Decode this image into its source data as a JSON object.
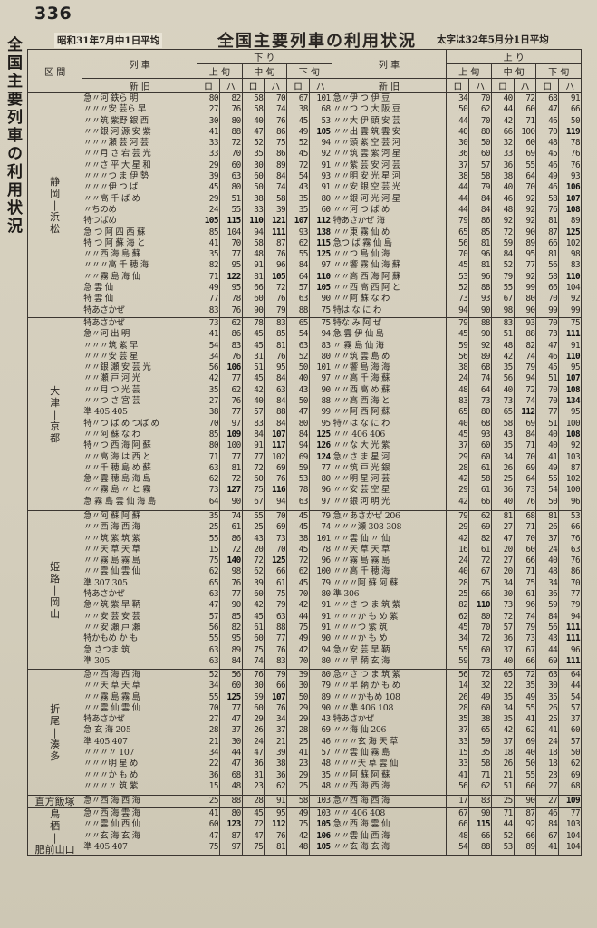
{
  "page": {
    "number": "336",
    "side_title": "全国主要列車の利用状況",
    "note_left": "昭和31年7月中1日平均",
    "title": "全国主要列車の利用状況",
    "note_right": "太字は32年5月分1日平均"
  },
  "header": {
    "section_label": "区 間",
    "section_sub": "区 間",
    "train_label": "列 車",
    "down_label": "下 り",
    "up_label": "上 り",
    "period": [
      "上 旬",
      "中 旬",
      "下 旬"
    ],
    "cls": [
      "ロ",
      "ハ",
      "ロ",
      "ハ",
      "ロ",
      "ハ"
    ],
    "new_old_label": "新 旧"
  },
  "blocks": [
    {
      "section": [
        "静",
        "岡",
        "|",
        "浜",
        "松"
      ],
      "down_trains": "急〃河 鉄ら 明\n〃〃〃安 芸ら 早\n〃〃筑 紫野 銀 西\n〃〃銀 河 源 安 紫\n〃〃〃瀬 芸 河 芸\n〃〃月 さ 宕 芸 光\n〃〃さ 平 大 星 和\n〃〃〃つ ま 伊 勢\n〃〃〃伊 つ ば\n〃〃高 千 ば め\n〃ちのめ\n特つばめ\n急 つ 阿 四 西 蘇\n特 つ 阿 蘇 海 と\n〃〃西 海 島 蘇\n〃〃〃高 千 穂 海\n〃〃霧 島 海 仙\n急 雲 仙\n特 雲 仙\n特あさかぜ",
      "down_nums": [
        [
          "80",
          "82",
          "58",
          "70",
          "67",
          "101"
        ],
        [
          "27",
          "76",
          "58",
          "74",
          "38",
          "68"
        ],
        [
          "30",
          "80",
          "40",
          "76",
          "45",
          "53"
        ],
        [
          "41",
          "88",
          "47",
          "86",
          "49",
          "105"
        ],
        [
          "33",
          "72",
          "52",
          "75",
          "52",
          "94"
        ],
        [
          "33",
          "70",
          "35",
          "86",
          "45",
          "92"
        ],
        [
          "29",
          "60",
          "30",
          "89",
          "72",
          "91"
        ],
        [
          "39",
          "63",
          "60",
          "84",
          "54",
          "93"
        ],
        [
          "45",
          "80",
          "50",
          "74",
          "43",
          "91"
        ],
        [
          "29",
          "51",
          "38",
          "58",
          "35",
          "80"
        ],
        [
          "24",
          "55",
          "33",
          "39",
          "35",
          "60"
        ],
        [
          "105",
          "115",
          "110",
          "121",
          "107",
          "112"
        ],
        [
          "85",
          "104",
          "94",
          "111",
          "93",
          "138"
        ],
        [
          "41",
          "70",
          "58",
          "87",
          "62",
          "115"
        ],
        [
          "35",
          "77",
          "48",
          "76",
          "55",
          "125"
        ],
        [
          "82",
          "95",
          "91",
          "96",
          "84",
          "97"
        ],
        [
          "71",
          "122",
          "81",
          "105",
          "64",
          "110"
        ],
        [
          "49",
          "95",
          "66",
          "72",
          "57",
          "105"
        ],
        [
          "77",
          "78",
          "60",
          "76",
          "63",
          "90"
        ],
        [
          "83",
          "76",
          "90",
          "79",
          "88",
          "75"
        ]
      ],
      "up_trains": "急〃伊 つ 伊 豆\n〃〃つ つ 大 阪 豆\n〃〃大 伊 頭 安 芸\n〃〃出 雲 筑 雲 安\n〃〃頭 紫 空 芸 河\n〃〃筑 雲 紫 河 星\n〃〃紫 芸 安 河 芸\n〃〃明 安 光 星 河\n〃〃安 銀 空 芸 光\n〃〃銀 河 光 河 星\n〃〃河 つ ば め\n特あさかぜ 海\n〃〃東 霧 仙 め\n急つ ば 霧 仙 島\n〃〃つ 島 仙 海\n〃〃響 霧 仙 海 蘇\n〃〃高 西 海 阿 蘇\n〃〃西 高 西 阿 と\n〃〃阿 蘇 な わ\n特は な に わ",
      "up_nums": [
        [
          "34",
          "70",
          "40",
          "72",
          "68",
          "91"
        ],
        [
          "50",
          "62",
          "44",
          "60",
          "47",
          "66"
        ],
        [
          "44",
          "70",
          "42",
          "71",
          "46",
          "50"
        ],
        [
          "40",
          "80",
          "66",
          "100",
          "70",
          "119"
        ],
        [
          "30",
          "50",
          "32",
          "60",
          "48",
          "78"
        ],
        [
          "36",
          "60",
          "33",
          "69",
          "45",
          "76"
        ],
        [
          "37",
          "57",
          "36",
          "55",
          "46",
          "76"
        ],
        [
          "38",
          "58",
          "38",
          "64",
          "49",
          "93"
        ],
        [
          "44",
          "79",
          "40",
          "70",
          "46",
          "106"
        ],
        [
          "44",
          "84",
          "46",
          "92",
          "58",
          "107"
        ],
        [
          "44",
          "84",
          "48",
          "92",
          "76",
          "108"
        ],
        [
          "79",
          "86",
          "92",
          "92",
          "81",
          "89"
        ],
        [
          "65",
          "85",
          "72",
          "90",
          "87",
          "125"
        ],
        [
          "56",
          "81",
          "59",
          "89",
          "66",
          "102"
        ],
        [
          "70",
          "96",
          "84",
          "95",
          "81",
          "98"
        ],
        [
          "45",
          "81",
          "52",
          "77",
          "56",
          "83"
        ],
        [
          "53",
          "96",
          "79",
          "92",
          "58",
          "110"
        ],
        [
          "52",
          "88",
          "55",
          "99",
          "66",
          "104"
        ],
        [
          "73",
          "93",
          "67",
          "80",
          "70",
          "92"
        ],
        [
          "94",
          "90",
          "98",
          "90",
          "99",
          "99"
        ]
      ]
    },
    {
      "section": [
        "大",
        "津",
        "|",
        "京",
        "都"
      ],
      "down_trains": "特あさかぜ\n急〃河 出 明\n〃〃〃筑 紫 早\n〃〃〃安 芸 星\n〃〃銀 瀬 安 芸 光\n〃〃瀬 戸 河 光\n〃〃月 つ 光 芸\n〃〃つ さ 宮 芸\n準 405 405\n特〃つ ば め つば め\n〃〃阿 蘇 な わ\n特〃つ 西 海 阿 蘇\n〃〃高 海 は 西 と\n〃〃千 穂 島 め 蘇\n急〃雲 穂 島 海 島\n〃〃霧 島 〃 と 霧\n急 霧 島 雲 仙 海 島",
      "down_nums": [
        [
          "73",
          "62",
          "78",
          "83",
          "65",
          "75"
        ],
        [
          "41",
          "86",
          "45",
          "85",
          "54",
          "94"
        ],
        [
          "54",
          "83",
          "45",
          "81",
          "63",
          "83"
        ],
        [
          "34",
          "76",
          "31",
          "76",
          "52",
          "80"
        ],
        [
          "56",
          "106",
          "51",
          "95",
          "50",
          "101"
        ],
        [
          "42",
          "77",
          "45",
          "84",
          "40",
          "97"
        ],
        [
          "35",
          "62",
          "42",
          "63",
          "43",
          "90"
        ],
        [
          "27",
          "76",
          "40",
          "84",
          "50",
          "88"
        ],
        [
          "38",
          "77",
          "57",
          "88",
          "47",
          "99"
        ],
        [
          "70",
          "97",
          "83",
          "84",
          "80",
          "95"
        ],
        [
          "85",
          "109",
          "84",
          "107",
          "84",
          "125"
        ],
        [
          "80",
          "100",
          "91",
          "117",
          "94",
          "126"
        ],
        [
          "71",
          "77",
          "77",
          "102",
          "69",
          "124"
        ],
        [
          "63",
          "81",
          "72",
          "69",
          "59",
          "77"
        ],
        [
          "62",
          "72",
          "60",
          "76",
          "53",
          "80"
        ],
        [
          "73",
          "127",
          "75",
          "116",
          "78",
          "96"
        ],
        [
          "64",
          "90",
          "67",
          "94",
          "63",
          "97"
        ]
      ],
      "up_trains": "特な み 阿 ぜ\n急 雲 伊 仙 島\n〃 霧 島 仙 海\n〃〃筑 雲 島 め\n〃〃響 島 海 海\n〃〃高 千 海 蘇\n〃〃西 高 め 蘇\n〃〃高 西 海 と\n〃〃阿 西 阿 蘇\n特〃は な に わ\n〃〃 406 406\n〃〃な 大 光 紫\n急〃さ ま 星 河\n〃〃筑 戸 光 銀\n〃〃明 星 河 芸\n〃〃安 芸 空 星\n〃〃銀 河 明 光",
      "up_nums": [
        [
          "79",
          "88",
          "83",
          "93",
          "70",
          "75"
        ],
        [
          "45",
          "90",
          "51",
          "88",
          "73",
          "111"
        ],
        [
          "59",
          "92",
          "48",
          "82",
          "47",
          "91"
        ],
        [
          "56",
          "89",
          "42",
          "74",
          "46",
          "110"
        ],
        [
          "38",
          "68",
          "35",
          "79",
          "45",
          "95"
        ],
        [
          "24",
          "74",
          "56",
          "94",
          "51",
          "107"
        ],
        [
          "48",
          "64",
          "40",
          "72",
          "70",
          "108"
        ],
        [
          "83",
          "73",
          "73",
          "74",
          "70",
          "134"
        ],
        [
          "65",
          "80",
          "65",
          "112",
          "77",
          "95"
        ],
        [
          "40",
          "68",
          "58",
          "69",
          "51",
          "100"
        ],
        [
          "45",
          "93",
          "43",
          "84",
          "40",
          "108"
        ],
        [
          "37",
          "60",
          "35",
          "71",
          "40",
          "92"
        ],
        [
          "29",
          "60",
          "34",
          "70",
          "41",
          "103"
        ],
        [
          "28",
          "61",
          "26",
          "69",
          "49",
          "87"
        ],
        [
          "42",
          "58",
          "25",
          "64",
          "55",
          "102"
        ],
        [
          "29",
          "61",
          "36",
          "73",
          "54",
          "100"
        ],
        [
          "42",
          "66",
          "40",
          "76",
          "50",
          "96"
        ]
      ]
    },
    {
      "section": [
        "姫",
        "路",
        "|",
        "岡",
        "山"
      ],
      "down_trains": "急〃阿 蘇 阿 蘇\n〃〃西 海 西 海\n〃〃筑 紫 筑 紫\n〃〃天 草 天 草\n〃〃霧 島 霧 島\n〃〃雲 仙 雲 仙\n準 307 305\n特あさかぜ\n急〃筑 紫 早 鞆\n〃〃安 芸 安 芸\n〃〃安 瀬 戸 瀬\n特かもめ か も\n急 さつま 筑\n準 305",
      "down_nums": [
        [
          "35",
          "74",
          "55",
          "70",
          "45",
          "79"
        ],
        [
          "25",
          "61",
          "25",
          "69",
          "45",
          "74"
        ],
        [
          "55",
          "86",
          "43",
          "73",
          "38",
          "101"
        ],
        [
          "15",
          "72",
          "20",
          "70",
          "45",
          "78"
        ],
        [
          "75",
          "140",
          "72",
          "125",
          "72",
          "96"
        ],
        [
          "62",
          "98",
          "62",
          "66",
          "62",
          "100"
        ],
        [
          "65",
          "76",
          "39",
          "61",
          "45",
          "79"
        ],
        [
          "63",
          "77",
          "60",
          "75",
          "70",
          "80"
        ],
        [
          "47",
          "90",
          "42",
          "79",
          "42",
          "91"
        ],
        [
          "57",
          "85",
          "45",
          "63",
          "44",
          "91"
        ],
        [
          "56",
          "82",
          "61",
          "88",
          "75",
          "91"
        ],
        [
          "55",
          "95",
          "60",
          "77",
          "49",
          "90"
        ],
        [
          "63",
          "89",
          "75",
          "76",
          "42",
          "94"
        ],
        [
          "63",
          "84",
          "74",
          "83",
          "70",
          "80"
        ]
      ],
      "up_trains": "急〃あさかぜ 206\n〃〃〃瀬 308 308\n〃〃雲 仙 〃 仙\n〃〃天 草 天 草\n〃〃霧 島 霧 島\n〃〃高 千 穂 海\n〃〃〃阿 蘇 阿 蘇\n準 306\n〃〃さ つ ま 筑 紫\n〃〃〃か も め 紫\n〃〃〃つ 紫 筑\n〃〃〃か も め\n急〃安 芸 早 鞆\n〃〃早 鞆 玄 海",
      "up_nums": [
        [
          "79",
          "62",
          "81",
          "68",
          "81",
          "53"
        ],
        [
          "29",
          "69",
          "27",
          "71",
          "26",
          "66"
        ],
        [
          "42",
          "82",
          "47",
          "70",
          "37",
          "76"
        ],
        [
          "16",
          "61",
          "20",
          "60",
          "24",
          "63"
        ],
        [
          "24",
          "72",
          "27",
          "66",
          "40",
          "76"
        ],
        [
          "40",
          "67",
          "20",
          "71",
          "48",
          "86"
        ],
        [
          "28",
          "75",
          "34",
          "75",
          "34",
          "70"
        ],
        [
          "25",
          "66",
          "30",
          "61",
          "36",
          "77"
        ],
        [
          "82",
          "110",
          "73",
          "96",
          "59",
          "79"
        ],
        [
          "62",
          "80",
          "72",
          "74",
          "84",
          "94"
        ],
        [
          "45",
          "70",
          "57",
          "79",
          "56",
          "111"
        ],
        [
          "34",
          "72",
          "36",
          "73",
          "43",
          "111"
        ],
        [
          "55",
          "60",
          "37",
          "67",
          "44",
          "96"
        ],
        [
          "59",
          "73",
          "40",
          "66",
          "69",
          "111"
        ]
      ]
    },
    {
      "section": [
        "折",
        "尾",
        "|",
        "湊",
        "多"
      ],
      "down_trains": "急〃西 海 西 海\n〃〃天 草 天 草\n〃〃霧 島 霧 島\n〃〃雲 仙 雲 仙\n特あさかぜ\n急 玄 海 205\n準 405 407\n〃〃〃〃 107\n〃〃〃明 星 め\n〃〃〃か も め\n〃〃〃〃 筑 紫",
      "down_nums": [
        [
          "52",
          "56",
          "76",
          "79",
          "39",
          "80"
        ],
        [
          "34",
          "60",
          "30",
          "66",
          "30",
          "79"
        ],
        [
          "55",
          "125",
          "59",
          "107",
          "50",
          "89"
        ],
        [
          "70",
          "77",
          "60",
          "76",
          "29",
          "90"
        ],
        [
          "27",
          "47",
          "29",
          "34",
          "29",
          "43"
        ],
        [
          "28",
          "37",
          "26",
          "37",
          "28",
          "69"
        ],
        [
          "21",
          "30",
          "24",
          "21",
          "25",
          "46"
        ],
        [
          "34",
          "44",
          "47",
          "39",
          "41",
          "57"
        ],
        [
          "22",
          "47",
          "36",
          "38",
          "23",
          "48"
        ],
        [
          "36",
          "68",
          "31",
          "36",
          "29",
          "35"
        ],
        [
          "15",
          "48",
          "23",
          "62",
          "25",
          "48"
        ]
      ],
      "up_trains": "急〃さ つ ま 筑 紫\n〃〃早 鞆 か も め\n〃〃〃かもめ 108\n〃〃準 406 108\n特あさかぜ\n〃〃海 仙 206\n〃〃〃玄 海 天 草\n〃〃雲 仙 霧 島\n〃〃〃天 草 雲 仙\n〃〃阿 蘇 阿 蘇\n〃〃西 海 西 海",
      "up_nums": [
        [
          "56",
          "72",
          "65",
          "72",
          "63",
          "64"
        ],
        [
          "14",
          "32",
          "22",
          "35",
          "30",
          "44"
        ],
        [
          "26",
          "49",
          "35",
          "49",
          "35",
          "54"
        ],
        [
          "28",
          "60",
          "34",
          "55",
          "26",
          "57"
        ],
        [
          "35",
          "38",
          "35",
          "41",
          "25",
          "37"
        ],
        [
          "37",
          "65",
          "42",
          "62",
          "41",
          "60"
        ],
        [
          "33",
          "59",
          "37",
          "69",
          "24",
          "57"
        ],
        [
          "15",
          "35",
          "18",
          "40",
          "18",
          "50"
        ],
        [
          "33",
          "58",
          "26",
          "50",
          "18",
          "62"
        ],
        [
          "41",
          "71",
          "21",
          "55",
          "23",
          "69"
        ],
        [
          "56",
          "62",
          "51",
          "60",
          "27",
          "68"
        ]
      ]
    },
    {
      "section": [
        "直方飯塚"
      ],
      "down_trains": "急〃西 海 西 海",
      "down_nums": [
        [
          "25",
          "88",
          "28",
          "91",
          "58",
          "103"
        ]
      ],
      "up_trains": "急〃西 海 西 海",
      "up_nums": [
        [
          "17",
          "83",
          "25",
          "90",
          "27",
          "109"
        ]
      ]
    },
    {
      "section": [
        "鳥",
        "栖",
        "|",
        "肥前山口"
      ],
      "down_trains": "急〃西 海 雲 海\n〃〃雲 仙 西 仙\n〃〃玄 海 玄 海\n準 405 407",
      "down_nums": [
        [
          "41",
          "80",
          "45",
          "95",
          "49",
          "103"
        ],
        [
          "60",
          "123",
          "72",
          "112",
          "75",
          "105"
        ],
        [
          "47",
          "87",
          "47",
          "76",
          "42",
          "106"
        ],
        [
          "75",
          "97",
          "75",
          "81",
          "48",
          "105"
        ]
      ],
      "up_trains": "〃〃 406 408\n急〃西 海 雲 仙\n〃〃雲 仙 西 海\n〃〃玄 海 玄 海",
      "up_nums": [
        [
          "67",
          "90",
          "71",
          "87",
          "46",
          "77"
        ],
        [
          "66",
          "115",
          "44",
          "92",
          "84",
          "103"
        ],
        [
          "48",
          "66",
          "52",
          "66",
          "67",
          "104"
        ],
        [
          "54",
          "88",
          "53",
          "89",
          "41",
          "104"
        ]
      ]
    }
  ]
}
